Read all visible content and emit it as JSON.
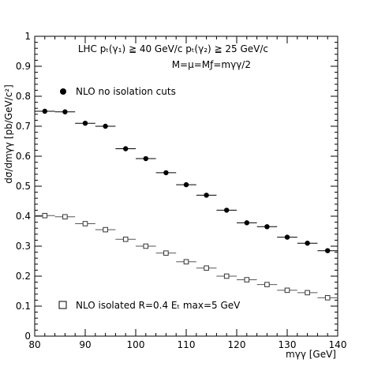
{
  "chart_data": {
    "type": "scatter",
    "xlim": [
      80,
      140
    ],
    "ylim": [
      0,
      1
    ],
    "x_ticks": [
      80,
      90,
      100,
      110,
      120,
      130,
      140
    ],
    "y_ticks": [
      0,
      0.1,
      0.2,
      0.3,
      0.4,
      0.5,
      0.6,
      0.7,
      0.8,
      0.9,
      1
    ],
    "x_tick_labels": [
      "80",
      "90",
      "100",
      "110",
      "120",
      "130",
      "140"
    ],
    "y_tick_labels": [
      "0",
      "0.1",
      "0.2",
      "0.3",
      "0.4",
      "0.5",
      "0.6",
      "0.7",
      "0.8",
      "0.9",
      "1"
    ],
    "xlabel": "mγγ [GeV]",
    "ylabel": "dσ/dmγγ [pb/GeV/c²]",
    "annotations": [
      "LHC pₜ(γ₁) ≧ 40 GeV/c pₜ(γ₂) ≧ 25 GeV/c",
      "M=μ=Mƒ=mγγ/2"
    ],
    "grid": false,
    "bin_half_width": 2,
    "series": [
      {
        "name": "NLO no isolation cuts",
        "marker": "filled-circle",
        "color": "#000000",
        "x": [
          82,
          86,
          90,
          94,
          98,
          102,
          106,
          110,
          114,
          118,
          122,
          126,
          130,
          134,
          138
        ],
        "y": [
          0.75,
          0.748,
          0.71,
          0.7,
          0.625,
          0.592,
          0.545,
          0.505,
          0.47,
          0.42,
          0.378,
          0.365,
          0.33,
          0.31,
          0.285
        ]
      },
      {
        "name": "NLO isolated R=0.4 Eₜ max=5 GeV",
        "marker": "open-square",
        "color": "#000000",
        "x": [
          82,
          86,
          90,
          94,
          98,
          102,
          106,
          110,
          114,
          118,
          122,
          126,
          130,
          134,
          138
        ],
        "y": [
          0.402,
          0.398,
          0.375,
          0.355,
          0.323,
          0.3,
          0.277,
          0.248,
          0.227,
          0.2,
          0.188,
          0.172,
          0.153,
          0.145,
          0.128
        ]
      }
    ]
  }
}
